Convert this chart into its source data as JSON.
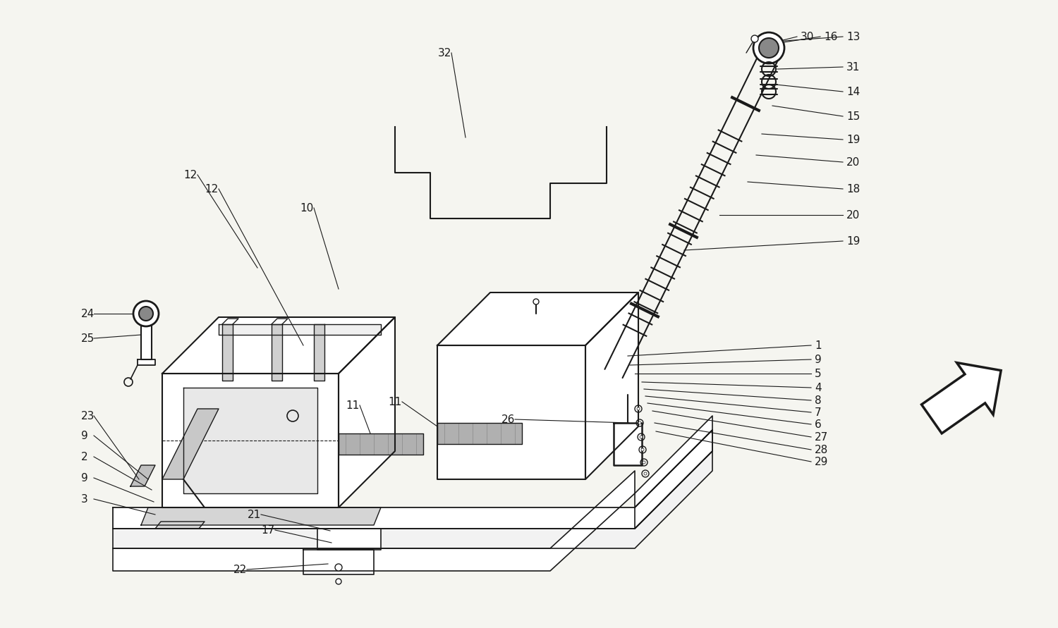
{
  "background_color": "#f5f5f0",
  "line_color": "#1a1a1a",
  "figure_size": [
    15.0,
    8.91
  ],
  "dpi": 100,
  "img_xlim": [
    0,
    1500
  ],
  "img_ylim": [
    0,
    891
  ]
}
